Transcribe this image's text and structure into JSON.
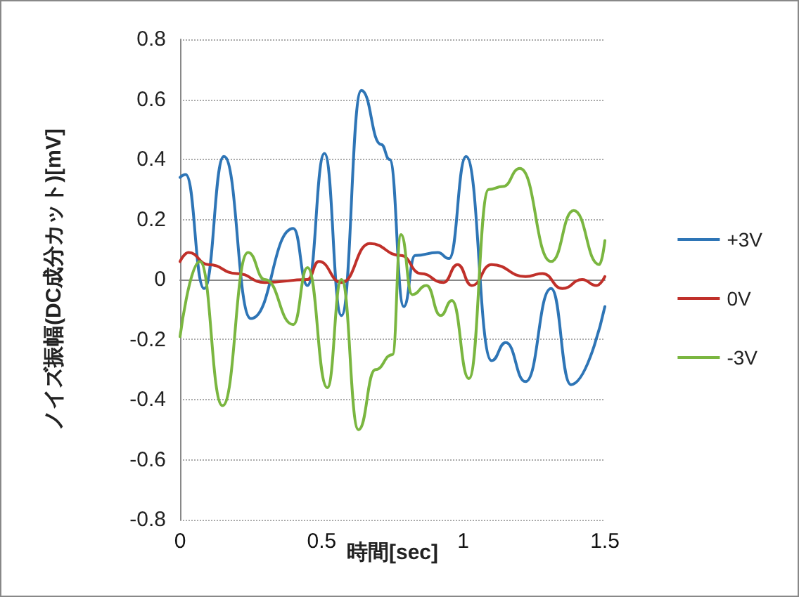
{
  "chart_data": {
    "type": "line",
    "xlabel": "時間[sec]",
    "ylabel": "ノイズ振幅(DC成分カット)[mV]",
    "xlim": [
      0,
      1.5
    ],
    "xticks": [
      0,
      0.5,
      1,
      1.5
    ],
    "ylim": [
      -0.8,
      0.8
    ],
    "yticks": [
      -0.8,
      -0.6,
      -0.4,
      -0.2,
      0,
      0.2,
      0.4,
      0.6,
      0.8
    ],
    "grid": "y",
    "legend": "right",
    "marker": "none",
    "line_style": "solid",
    "series": [
      {
        "name": "+3V",
        "color": "#2e75b6",
        "x": [
          0,
          0.02,
          0.085,
          0.155,
          0.25,
          0.4,
          0.45,
          0.51,
          0.57,
          0.64,
          0.71,
          0.74,
          0.79,
          0.83,
          0.91,
          0.95,
          1.01,
          1.1,
          1.15,
          1.22,
          1.31,
          1.38,
          1.5
        ],
        "values": [
          0.34,
          0.35,
          -0.03,
          0.41,
          -0.13,
          0.17,
          -0.02,
          0.42,
          -0.12,
          0.63,
          0.45,
          0.4,
          -0.09,
          0.08,
          0.09,
          0.07,
          0.41,
          -0.27,
          -0.21,
          -0.34,
          -0.03,
          -0.35,
          -0.09
        ]
      },
      {
        "name": "0V",
        "color": "#c0302a",
        "x": [
          0,
          0.03,
          0.1,
          0.2,
          0.3,
          0.45,
          0.49,
          0.57,
          0.67,
          0.78,
          0.85,
          0.93,
          0.98,
          1.03,
          1.1,
          1.22,
          1.28,
          1.35,
          1.42,
          1.47,
          1.5
        ],
        "values": [
          0.06,
          0.09,
          0.05,
          0.02,
          -0.01,
          0.0,
          0.06,
          -0.01,
          0.12,
          0.08,
          0.02,
          -0.01,
          0.05,
          -0.02,
          0.05,
          0.01,
          0.02,
          -0.03,
          0.0,
          -0.02,
          0.01
        ]
      },
      {
        "name": "-3V",
        "color": "#7ab640",
        "x": [
          0,
          0.07,
          0.15,
          0.24,
          0.3,
          0.4,
          0.45,
          0.52,
          0.57,
          0.63,
          0.69,
          0.75,
          0.78,
          0.82,
          0.87,
          0.92,
          0.96,
          1.02,
          1.09,
          1.14,
          1.2,
          1.31,
          1.39,
          1.48,
          1.5
        ],
        "values": [
          -0.19,
          0.06,
          -0.42,
          0.09,
          0.0,
          -0.15,
          0.04,
          -0.36,
          0.0,
          -0.5,
          -0.3,
          -0.25,
          0.15,
          -0.05,
          -0.02,
          -0.12,
          -0.07,
          -0.33,
          0.3,
          0.31,
          0.37,
          0.06,
          0.23,
          0.05,
          0.13
        ]
      }
    ]
  }
}
